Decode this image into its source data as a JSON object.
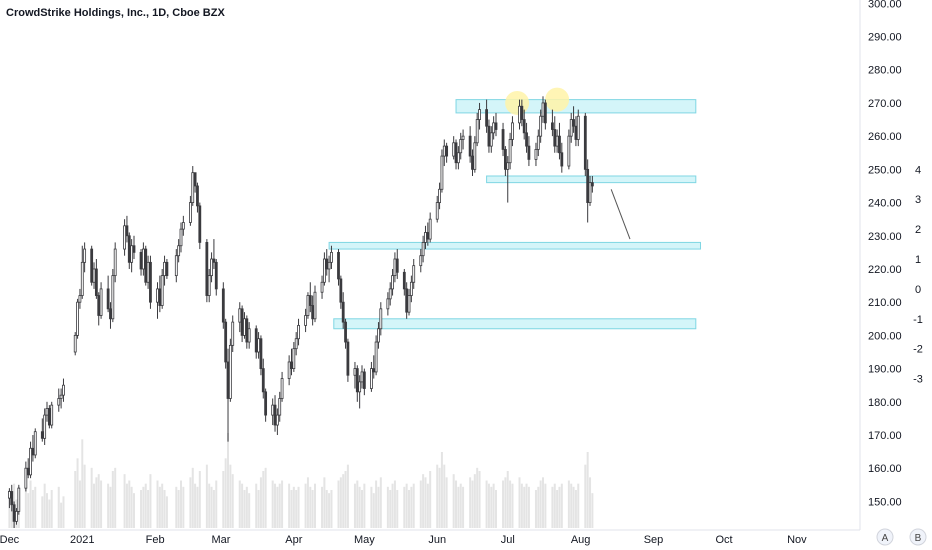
{
  "header": {
    "title": "CrowdStrike Holdings, Inc., 1D, Cboe BZX"
  },
  "scale_buttons": {
    "auto": "A",
    "log": "B"
  },
  "colors": {
    "up": "#ffffff",
    "down": "#3a3a3e",
    "wick": "#3a3a3e",
    "volume": "#e4e4e4",
    "zone_fill": "#d4f5f9",
    "zone_stroke": "#7fd6e3",
    "highlight": "#fff3a8",
    "axis_line": "#e0e3eb"
  },
  "chart_data": {
    "type": "candlestick",
    "title": "CrowdStrike Holdings, Inc., 1D, Cboe BZX",
    "xlabel": "",
    "ylabel": "",
    "ylim": [
      142,
      301
    ],
    "y_ticks": [
      "150.00",
      "160.00",
      "170.00",
      "180.00",
      "190.00",
      "200.00",
      "210.00",
      "220.00",
      "230.00",
      "240.00",
      "250.00",
      "260.00",
      "270.00",
      "280.00",
      "290.00",
      "300.00"
    ],
    "secondary_ticks": [
      "4",
      "3",
      "2",
      "1",
      "0",
      "-1",
      "-2",
      "-3"
    ],
    "x_ticks": [
      {
        "label": "Dec",
        "day": 0
      },
      {
        "label": "2021",
        "day": 31
      },
      {
        "label": "Feb",
        "day": 62
      },
      {
        "label": "Mar",
        "day": 90
      },
      {
        "label": "Apr",
        "day": 121
      },
      {
        "label": "May",
        "day": 151
      },
      {
        "label": "Jun",
        "day": 182
      },
      {
        "label": "Jul",
        "day": 212
      },
      {
        "label": "Aug",
        "day": 243
      },
      {
        "label": "Sep",
        "day": 274
      },
      {
        "label": "Oct",
        "day": 304
      },
      {
        "label": "Nov",
        "day": 335
      }
    ],
    "xlim_days": [
      -4,
      361
    ],
    "zones": [
      {
        "from_day": 190,
        "to_day": 292,
        "low": 267,
        "high": 271
      },
      {
        "from_day": 203,
        "to_day": 292,
        "low": 246,
        "high": 248
      },
      {
        "from_day": 136,
        "to_day": 294,
        "low": 226,
        "high": 228
      },
      {
        "from_day": 138,
        "to_day": 292,
        "low": 202,
        "high": 205
      }
    ],
    "highlights": [
      {
        "day": 216,
        "price": 270
      },
      {
        "day": 233,
        "price": 271
      }
    ],
    "arrow": {
      "from_day": 256,
      "from_price": 244,
      "to_day": 264,
      "to_price": 229
    },
    "candles": [
      [
        0,
        151,
        154,
        148,
        153,
        12
      ],
      [
        1,
        153,
        155,
        147,
        149,
        11
      ],
      [
        2,
        149,
        150,
        142,
        144,
        14
      ],
      [
        3,
        144,
        148,
        143,
        147,
        9
      ],
      [
        4,
        147,
        155,
        146,
        154,
        13
      ],
      [
        7,
        154,
        162,
        153,
        160,
        16
      ],
      [
        8,
        160,
        163,
        157,
        158,
        11
      ],
      [
        9,
        158,
        168,
        157,
        166,
        15
      ],
      [
        10,
        166,
        170,
        162,
        164,
        12
      ],
      [
        11,
        164,
        172,
        163,
        171,
        13
      ],
      [
        14,
        171,
        175,
        168,
        169,
        10
      ],
      [
        15,
        169,
        178,
        167,
        176,
        14
      ],
      [
        16,
        176,
        180,
        174,
        178,
        11
      ],
      [
        17,
        178,
        179,
        172,
        173,
        9
      ],
      [
        18,
        173,
        180,
        172,
        179,
        12
      ],
      [
        21,
        179,
        184,
        177,
        181,
        13
      ],
      [
        22,
        181,
        184,
        178,
        182,
        8
      ],
      [
        23,
        182,
        187,
        180,
        185,
        10
      ],
      [
        28,
        195,
        201,
        194,
        200,
        18
      ],
      [
        29,
        200,
        211,
        199,
        210,
        22
      ],
      [
        30,
        210,
        214,
        208,
        212,
        15
      ],
      [
        31,
        212,
        227,
        211,
        222,
        28
      ],
      [
        32,
        222,
        228,
        219,
        226,
        20
      ],
      [
        35,
        226,
        227,
        215,
        216,
        19
      ],
      [
        36,
        216,
        222,
        214,
        220,
        14
      ],
      [
        37,
        220,
        223,
        211,
        212,
        16
      ],
      [
        38,
        212,
        213,
        203,
        206,
        17
      ],
      [
        39,
        206,
        216,
        205,
        214,
        15
      ],
      [
        42,
        214,
        218,
        207,
        208,
        14
      ],
      [
        43,
        208,
        210,
        202,
        205,
        13
      ],
      [
        44,
        205,
        220,
        204,
        218,
        18
      ],
      [
        45,
        218,
        228,
        216,
        226,
        19
      ],
      [
        49,
        226,
        235,
        224,
        233,
        17
      ],
      [
        50,
        233,
        236,
        228,
        230,
        14
      ],
      [
        51,
        230,
        231,
        220,
        222,
        15
      ],
      [
        52,
        222,
        229,
        219,
        227,
        13
      ],
      [
        53,
        227,
        230,
        223,
        225,
        11
      ],
      [
        56,
        225,
        226,
        218,
        220,
        12
      ],
      [
        57,
        220,
        228,
        218,
        226,
        13
      ],
      [
        58,
        226,
        227,
        215,
        216,
        14
      ],
      [
        59,
        216,
        224,
        214,
        222,
        12
      ],
      [
        60,
        222,
        224,
        208,
        210,
        17
      ],
      [
        63,
        210,
        216,
        205,
        214,
        15
      ],
      [
        64,
        214,
        218,
        207,
        209,
        13
      ],
      [
        65,
        209,
        220,
        208,
        218,
        14
      ],
      [
        66,
        218,
        224,
        215,
        222,
        12
      ],
      [
        67,
        222,
        223,
        217,
        218,
        10
      ],
      [
        71,
        218,
        226,
        216,
        224,
        13
      ],
      [
        72,
        224,
        229,
        222,
        227,
        12
      ],
      [
        73,
        227,
        234,
        225,
        232,
        15
      ],
      [
        74,
        232,
        236,
        230,
        234,
        13
      ],
      [
        77,
        234,
        242,
        233,
        240,
        16
      ],
      [
        78,
        240,
        251,
        239,
        249,
        19
      ],
      [
        79,
        249,
        248,
        243,
        245,
        14
      ],
      [
        80,
        245,
        246,
        237,
        239,
        13
      ],
      [
        81,
        239,
        240,
        226,
        228,
        18
      ],
      [
        84,
        228,
        229,
        210,
        212,
        20
      ],
      [
        85,
        212,
        220,
        210,
        218,
        14
      ],
      [
        86,
        218,
        225,
        216,
        223,
        13
      ],
      [
        87,
        223,
        229,
        220,
        222,
        12
      ],
      [
        88,
        222,
        223,
        212,
        214,
        15
      ],
      [
        91,
        214,
        216,
        202,
        204,
        18
      ],
      [
        92,
        204,
        205,
        190,
        192,
        22
      ],
      [
        93,
        192,
        196,
        168,
        181,
        30
      ],
      [
        94,
        181,
        199,
        180,
        197,
        20
      ],
      [
        95,
        197,
        206,
        195,
        204,
        17
      ],
      [
        98,
        204,
        210,
        201,
        208,
        15
      ],
      [
        99,
        208,
        209,
        198,
        200,
        14
      ],
      [
        100,
        200,
        207,
        199,
        205,
        12
      ],
      [
        101,
        205,
        206,
        196,
        198,
        13
      ],
      [
        102,
        198,
        204,
        196,
        202,
        11
      ],
      [
        105,
        202,
        203,
        193,
        195,
        14
      ],
      [
        106,
        195,
        201,
        193,
        199,
        12
      ],
      [
        107,
        199,
        200,
        188,
        190,
        16
      ],
      [
        108,
        190,
        193,
        181,
        183,
        18
      ],
      [
        109,
        183,
        184,
        174,
        176,
        19
      ],
      [
        112,
        176,
        181,
        173,
        179,
        15
      ],
      [
        113,
        179,
        182,
        171,
        173,
        14
      ],
      [
        114,
        173,
        178,
        170,
        176,
        13
      ],
      [
        115,
        176,
        183,
        174,
        181,
        14
      ],
      [
        116,
        181,
        189,
        180,
        187,
        15
      ],
      [
        119,
        187,
        194,
        185,
        192,
        14
      ],
      [
        120,
        192,
        196,
        188,
        190,
        12
      ],
      [
        121,
        190,
        198,
        189,
        196,
        13
      ],
      [
        122,
        196,
        201,
        194,
        199,
        12
      ],
      [
        123,
        199,
        205,
        197,
        203,
        13
      ],
      [
        126,
        203,
        208,
        201,
        206,
        14
      ],
      [
        127,
        206,
        213,
        205,
        212,
        16
      ],
      [
        128,
        212,
        216,
        207,
        209,
        13
      ],
      [
        129,
        209,
        212,
        203,
        205,
        12
      ],
      [
        130,
        205,
        215,
        204,
        213,
        14
      ],
      [
        133,
        213,
        218,
        211,
        216,
        13
      ],
      [
        134,
        216,
        225,
        215,
        223,
        16
      ],
      [
        135,
        223,
        226,
        218,
        220,
        12
      ],
      [
        136,
        220,
        224,
        216,
        222,
        11
      ],
      [
        137,
        222,
        227,
        220,
        225,
        12
      ],
      [
        140,
        225,
        226,
        215,
        217,
        15
      ],
      [
        141,
        217,
        218,
        208,
        210,
        16
      ],
      [
        142,
        210,
        213,
        202,
        204,
        17
      ],
      [
        143,
        204,
        205,
        196,
        198,
        18
      ],
      [
        144,
        198,
        199,
        186,
        188,
        20
      ],
      [
        147,
        188,
        192,
        184,
        190,
        14
      ],
      [
        148,
        190,
        191,
        180,
        183,
        15
      ],
      [
        149,
        183,
        188,
        178,
        186,
        13
      ],
      [
        150,
        186,
        191,
        184,
        189,
        12
      ],
      [
        151,
        189,
        190,
        182,
        184,
        14
      ],
      [
        154,
        184,
        192,
        183,
        190,
        13
      ],
      [
        155,
        190,
        194,
        187,
        189,
        11
      ],
      [
        156,
        189,
        200,
        188,
        198,
        15
      ],
      [
        157,
        198,
        204,
        196,
        202,
        13
      ],
      [
        158,
        202,
        210,
        200,
        208,
        16
      ],
      [
        161,
        208,
        213,
        206,
        211,
        13
      ],
      [
        162,
        211,
        216,
        209,
        214,
        12
      ],
      [
        163,
        214,
        220,
        212,
        218,
        14
      ],
      [
        164,
        218,
        225,
        216,
        223,
        15
      ],
      [
        165,
        223,
        226,
        217,
        219,
        12
      ],
      [
        168,
        219,
        220,
        212,
        214,
        13
      ],
      [
        169,
        214,
        216,
        205,
        207,
        14
      ],
      [
        170,
        207,
        214,
        206,
        212,
        12
      ],
      [
        171,
        212,
        218,
        210,
        216,
        13
      ],
      [
        172,
        216,
        223,
        214,
        221,
        14
      ],
      [
        175,
        221,
        226,
        219,
        224,
        15
      ],
      [
        176,
        224,
        230,
        222,
        228,
        17
      ],
      [
        177,
        228,
        233,
        226,
        231,
        16
      ],
      [
        178,
        231,
        234,
        227,
        229,
        14
      ],
      [
        179,
        229,
        237,
        228,
        235,
        18
      ],
      [
        182,
        235,
        242,
        234,
        240,
        20
      ],
      [
        183,
        240,
        246,
        238,
        244,
        19
      ],
      [
        184,
        244,
        256,
        243,
        254,
        24
      ],
      [
        185,
        254,
        259,
        251,
        257,
        20
      ],
      [
        186,
        257,
        258,
        252,
        254,
        16
      ],
      [
        189,
        254,
        260,
        253,
        258,
        17
      ],
      [
        190,
        258,
        259,
        250,
        252,
        15
      ],
      [
        191,
        252,
        257,
        250,
        255,
        13
      ],
      [
        192,
        255,
        261,
        253,
        259,
        14
      ],
      [
        193,
        259,
        262,
        256,
        260,
        13
      ],
      [
        196,
        260,
        263,
        252,
        254,
        16
      ],
      [
        197,
        254,
        256,
        248,
        250,
        15
      ],
      [
        198,
        250,
        260,
        249,
        258,
        17
      ],
      [
        199,
        258,
        267,
        257,
        265,
        19
      ],
      [
        200,
        265,
        270,
        262,
        268,
        18
      ],
      [
        203,
        268,
        271,
        261,
        263,
        15
      ],
      [
        204,
        263,
        265,
        255,
        257,
        14
      ],
      [
        205,
        257,
        263,
        255,
        261,
        13
      ],
      [
        206,
        261,
        266,
        259,
        264,
        14
      ],
      [
        207,
        264,
        267,
        260,
        262,
        12
      ],
      [
        210,
        262,
        264,
        254,
        256,
        15
      ],
      [
        211,
        256,
        257,
        248,
        250,
        16
      ],
      [
        212,
        250,
        254,
        240,
        252,
        18
      ],
      [
        213,
        252,
        261,
        250,
        259,
        15
      ],
      [
        214,
        259,
        266,
        257,
        264,
        14
      ],
      [
        217,
        264,
        271,
        262,
        269,
        16
      ],
      [
        218,
        269,
        271,
        263,
        265,
        14
      ],
      [
        219,
        265,
        268,
        259,
        261,
        13
      ],
      [
        220,
        261,
        264,
        255,
        257,
        14
      ],
      [
        221,
        257,
        260,
        251,
        253,
        13
      ],
      [
        224,
        253,
        258,
        251,
        256,
        12
      ],
      [
        225,
        256,
        262,
        254,
        260,
        13
      ],
      [
        226,
        260,
        268,
        258,
        266,
        15
      ],
      [
        227,
        266,
        272,
        264,
        270,
        16
      ],
      [
        228,
        270,
        271,
        262,
        264,
        14
      ],
      [
        231,
        264,
        268,
        260,
        262,
        13
      ],
      [
        232,
        262,
        266,
        255,
        257,
        14
      ],
      [
        233,
        257,
        262,
        255,
        260,
        12
      ],
      [
        234,
        260,
        264,
        253,
        255,
        13
      ],
      [
        235,
        255,
        258,
        249,
        251,
        14
      ],
      [
        238,
        251,
        262,
        250,
        260,
        15
      ],
      [
        239,
        260,
        267,
        258,
        265,
        14
      ],
      [
        240,
        265,
        269,
        261,
        263,
        13
      ],
      [
        241,
        263,
        266,
        257,
        259,
        12
      ],
      [
        242,
        259,
        268,
        257,
        266,
        14
      ],
      [
        245,
        266,
        267,
        248,
        250,
        20
      ],
      [
        246,
        250,
        253,
        234,
        240,
        24
      ],
      [
        247,
        240,
        248,
        239,
        246,
        16
      ],
      [
        248,
        246,
        248,
        243,
        245,
        11
      ]
    ]
  }
}
